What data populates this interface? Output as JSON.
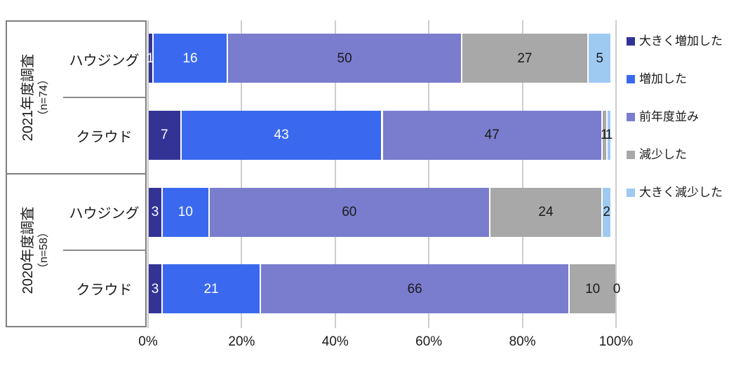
{
  "chart_data": {
    "type": "bar",
    "stacked": true,
    "orientation": "horizontal",
    "unit": "percent",
    "grid": true,
    "legend_position": "right",
    "x_axis": {
      "min": 0,
      "max": 100,
      "ticks": [
        "0%",
        "20%",
        "40%",
        "60%",
        "80%",
        "100%"
      ],
      "tick_values": [
        0,
        20,
        40,
        60,
        80,
        100
      ]
    },
    "series": [
      {
        "name": "大きく増加した",
        "color": "#333396",
        "label_color": "#ffffff"
      },
      {
        "name": "増加した",
        "color": "#3a69ef",
        "label_color": "#ffffff"
      },
      {
        "name": "前年度並み",
        "color": "#7a7cce",
        "label_color": "#1a1a1a"
      },
      {
        "name": "減少した",
        "color": "#a8a8a8",
        "label_color": "#1a1a1a"
      },
      {
        "name": "大きく減少した",
        "color": "#9ecaf2",
        "label_color": "#1a1a1a"
      }
    ],
    "groups": [
      {
        "label": "2021年度調査",
        "sub_label": "（n=74）",
        "rows": [
          {
            "label": "ハウジング",
            "values": [
              1,
              16,
              50,
              27,
              5
            ]
          },
          {
            "label": "クラウド",
            "values": [
              7,
              43,
              47,
              1,
              1
            ]
          }
        ]
      },
      {
        "label": "2020年度調査",
        "sub_label": "（n=58）",
        "rows": [
          {
            "label": "ハウジング",
            "values": [
              3,
              10,
              60,
              24,
              2
            ]
          },
          {
            "label": "クラウド",
            "values": [
              3,
              21,
              66,
              10,
              0
            ]
          }
        ]
      }
    ]
  }
}
